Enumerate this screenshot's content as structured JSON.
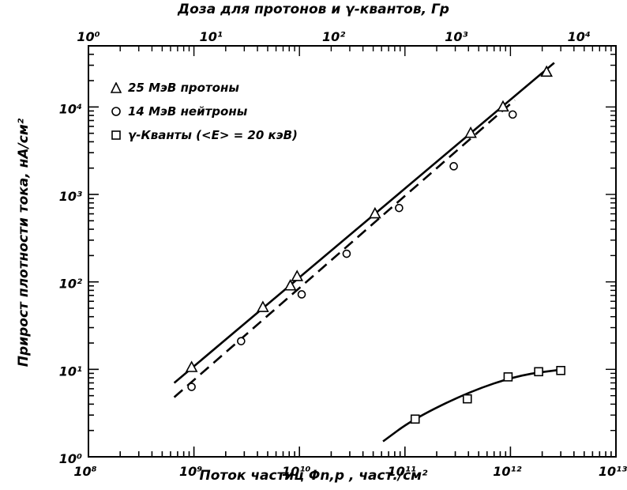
{
  "chart_data": {
    "type": "scatter",
    "x_scale": "log",
    "y_scale": "log",
    "xlim": [
      100000000.0,
      10000000000000.0
    ],
    "ylim": [
      1,
      50000
    ],
    "top_xlim": [
      1,
      20000
    ],
    "xlabel": "Поток частиц Φn,p , част./см²",
    "ylabel": "Прирост плотности тока, нА/см²",
    "top_xlabel": "Доза для протонов и γ-квантов, Гр",
    "x_ticks": [
      "10⁸",
      "10⁹",
      "10¹⁰",
      "10¹¹",
      "10¹²",
      "10¹³"
    ],
    "y_ticks": [
      "10⁰",
      "10¹",
      "10²",
      "10³",
      "10⁴"
    ],
    "top_ticks": [
      "10⁰",
      "10¹",
      "10²",
      "10³",
      "10⁴"
    ],
    "legend_position": "top-left",
    "series": [
      {
        "name": "25 МэВ протоны",
        "marker": "triangle",
        "points": [
          [
            950000000.0,
            10.5
          ],
          [
            4500000000.0,
            51
          ],
          [
            8200000000.0,
            90
          ],
          [
            9500000000.0,
            115
          ],
          [
            52000000000.0,
            600
          ],
          [
            420000000000.0,
            5000
          ],
          [
            850000000000.0,
            10000
          ],
          [
            2200000000000.0,
            25000
          ]
        ],
        "fit": {
          "style": "solid",
          "from": [
            650000000.0,
            7
          ],
          "to": [
            2600000000000.0,
            32000
          ]
        }
      },
      {
        "name": "14 МэВ нейтроны",
        "marker": "circle",
        "points": [
          [
            950000000.0,
            6.3
          ],
          [
            2800000000.0,
            21
          ],
          [
            10500000000.0,
            72
          ],
          [
            28000000000.0,
            210
          ],
          [
            88000000000.0,
            700
          ],
          [
            290000000000.0,
            2100
          ],
          [
            1050000000000.0,
            8200
          ]
        ],
        "fit": {
          "style": "dashed",
          "from": [
            650000000.0,
            4.8
          ],
          "to": [
            1100000000000.0,
            12000
          ]
        }
      },
      {
        "name": "γ-Кванты (<E> = 20 кэВ)",
        "marker": "square",
        "points": [
          [
            125000000000.0,
            2.7
          ],
          [
            390000000000.0,
            4.6
          ],
          [
            950000000000.0,
            8.2
          ],
          [
            1850000000000.0,
            9.4
          ],
          [
            3000000000000.0,
            9.7
          ]
        ],
        "fit": {
          "style": "solid-curve",
          "curve": [
            [
              62000000000.0,
              1.5
            ],
            [
              120000000000.0,
              2.7
            ],
            [
              400000000000.0,
              5.5
            ],
            [
              1200000000000.0,
              8.6
            ],
            [
              3200000000000.0,
              10
            ]
          ]
        }
      }
    ]
  }
}
